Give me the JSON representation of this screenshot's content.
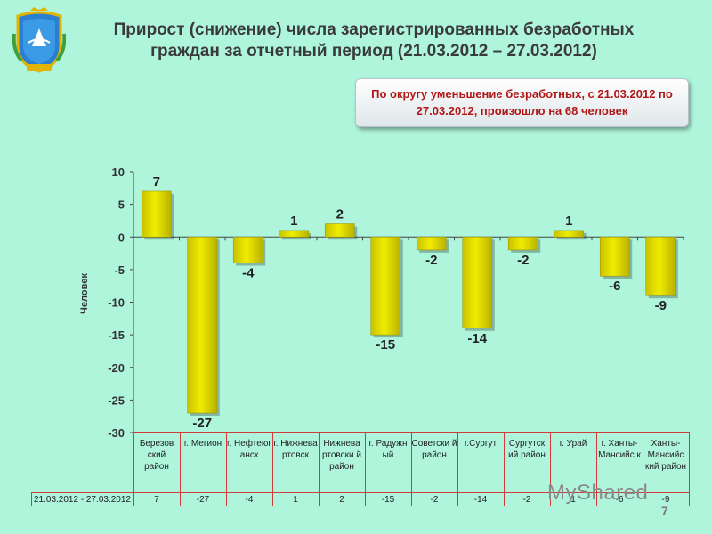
{
  "title": "Прирост (снижение) числа зарегистрированных безработных граждан за отчетный период (21.03.2012 – 27.03.2012)",
  "callout": "По округу уменьшение безработных, с 21.03.2012 по 27.03.2012, произошло на 68 человек",
  "chart_data": {
    "type": "bar",
    "categories": [
      "Березовский район",
      "г. Мегион",
      "г. Нефтеюганск",
      "г. Нижневартовск",
      "Нижневартовский район",
      "г. Радужный",
      "Советский район",
      "г.Сургут",
      "Сургутский район",
      "г. Урай",
      "г. Ханты-Мансийск",
      "Ханты-Мансийский район"
    ],
    "category_labels": [
      "Березов ский район",
      "г. Мегион",
      "г. Нефтеюг анск",
      "г. Нижнева ртовск",
      "Нижнева ртовски й район",
      "г. Радужн ый",
      "Советски й район",
      "г.Сургут",
      "Сургутск ий район",
      "г. Урай",
      "г. Ханты-Мансийс к",
      "Ханты-Мансийс кий район"
    ],
    "series": [
      {
        "name": "21.03.2012 - 27.03.2012",
        "values": [
          7,
          -27,
          -4,
          1,
          2,
          -15,
          -2,
          -14,
          -2,
          1,
          -6,
          -9
        ]
      }
    ],
    "ylabel": "Человек",
    "xlabel": "",
    "ylim": [
      -30,
      10
    ],
    "yticks": [
      10,
      5,
      0,
      -5,
      -10,
      -15,
      -20,
      -25,
      -30
    ],
    "bar_color": "#f0ec00",
    "grid": false,
    "legend": "table"
  },
  "table": {
    "period_label": "21.03.2012 - 27.03.2012",
    "values": [
      "7",
      "-27",
      "-4",
      "1",
      "2",
      "-15",
      "-2",
      "-14",
      "-2",
      "1",
      "-6",
      "-9"
    ]
  },
  "watermark": "MyShared",
  "page_number": "7",
  "colors": {
    "background": "#aef5dc",
    "title": "#3a3a3a",
    "callout_text": "#b01818",
    "table_border": "#d6393a"
  }
}
